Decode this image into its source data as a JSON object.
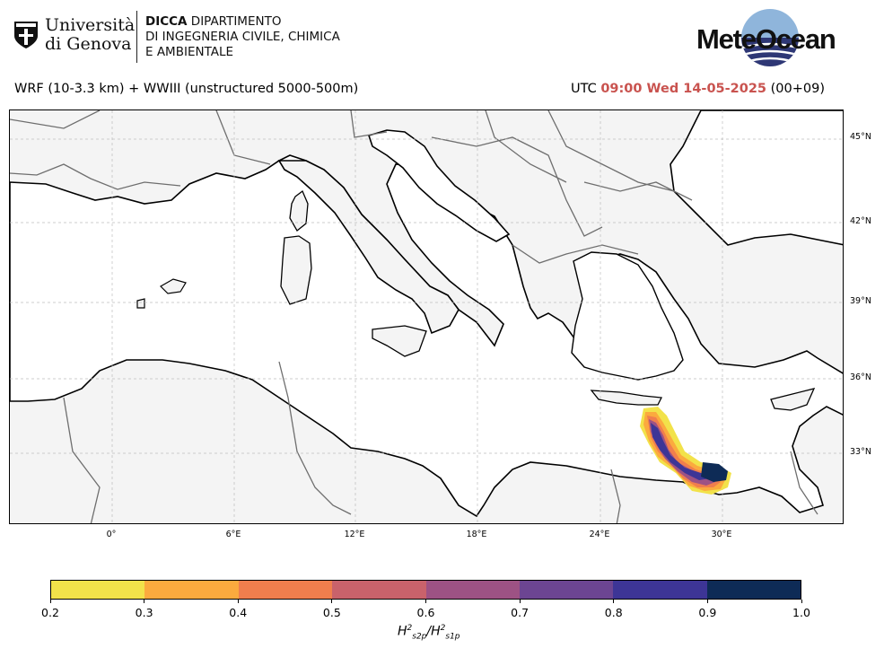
{
  "header": {
    "university_name_line1": "Università",
    "university_name_line2": "di Genova",
    "dept_bold": "DICCA",
    "dept_line1": "DIPARTIMENTO",
    "dept_line2": "DI INGEGNERIA CIVILE, CHIMICA",
    "dept_line3": "E AMBIENTALE",
    "brand": "MeteOcean"
  },
  "title_left": "WRF (10-3.3 km) + WWIII (unstructured 5000-500m)",
  "title_right": {
    "prefix": "UTC",
    "timestamp": "09:00 Wed 14-05-2025",
    "suffix": "(00+09)"
  },
  "colors": {
    "accent_timestamp": "#c9534f",
    "land": "#f4f4f4",
    "sea": "#ffffff"
  },
  "map": {
    "lat_labels": [
      "45°N",
      "42°N",
      "39°N",
      "36°N",
      "33°N"
    ],
    "lon_labels": [
      "0°",
      "6°E",
      "12°E",
      "18°E",
      "24°E",
      "30°E"
    ],
    "grid": true
  },
  "colorbar": {
    "ticks": [
      "0.2",
      "0.3",
      "0.4",
      "0.5",
      "0.6",
      "0.7",
      "0.8",
      "0.9",
      "1.0"
    ],
    "colors": [
      "#f2e24a",
      "#fbaa3e",
      "#f07e4d",
      "#c9626b",
      "#9d5284",
      "#6c4592",
      "#3d3596",
      "#0e2b56"
    ],
    "label_base": "H",
    "label_sub_num": "s2p",
    "label_sub_den": "s1p",
    "label_exp": "2"
  }
}
